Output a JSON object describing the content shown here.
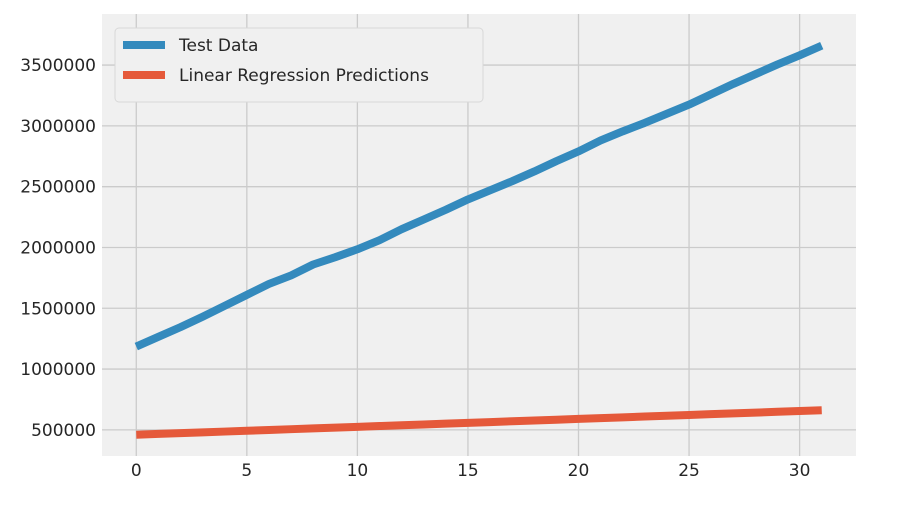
{
  "chart_data": {
    "type": "line",
    "title": "",
    "xlabel": "",
    "ylabel": "",
    "xlim": [
      -1.55,
      32.55
    ],
    "ylim": [
      285000,
      3920000
    ],
    "x_ticks": [
      0,
      5,
      10,
      15,
      20,
      25,
      30
    ],
    "x_tick_labels": [
      "0",
      "5",
      "10",
      "15",
      "20",
      "25",
      "30"
    ],
    "y_ticks": [
      500000,
      1000000,
      1500000,
      2000000,
      2500000,
      3000000,
      3500000
    ],
    "y_tick_labels": [
      "500000",
      "1000000",
      "1500000",
      "2000000",
      "2500000",
      "3000000",
      "3500000"
    ],
    "grid": true,
    "legend_position": "upper-left",
    "background_color": "#f0f0f0",
    "grid_color": "#cbcbcb",
    "x": [
      0,
      1,
      2,
      3,
      4,
      5,
      6,
      7,
      8,
      9,
      10,
      11,
      12,
      13,
      14,
      15,
      16,
      17,
      18,
      19,
      20,
      21,
      22,
      23,
      24,
      25,
      26,
      27,
      28,
      29,
      30,
      31
    ],
    "series": [
      {
        "name": "Test Data",
        "color": "#348abd",
        "values": [
          1185000,
          1265000,
          1345000,
          1430000,
          1520000,
          1610000,
          1700000,
          1770000,
          1860000,
          1920000,
          1985000,
          2060000,
          2150000,
          2230000,
          2310000,
          2395000,
          2470000,
          2545000,
          2625000,
          2710000,
          2790000,
          2880000,
          2955000,
          3025000,
          3100000,
          3175000,
          3260000,
          3345000,
          3425000,
          3505000,
          3580000,
          3660000
        ]
      },
      {
        "name": "Linear Regression Predictions",
        "color": "#e5593a",
        "values": [
          460000,
          466500,
          473000,
          479500,
          486000,
          492500,
          499000,
          505500,
          512000,
          518500,
          525000,
          531500,
          538000,
          544500,
          551000,
          557500,
          564000,
          570500,
          577000,
          583500,
          590000,
          596500,
          603000,
          609500,
          616000,
          622500,
          629000,
          635500,
          642000,
          648500,
          655000,
          661500
        ]
      }
    ]
  }
}
